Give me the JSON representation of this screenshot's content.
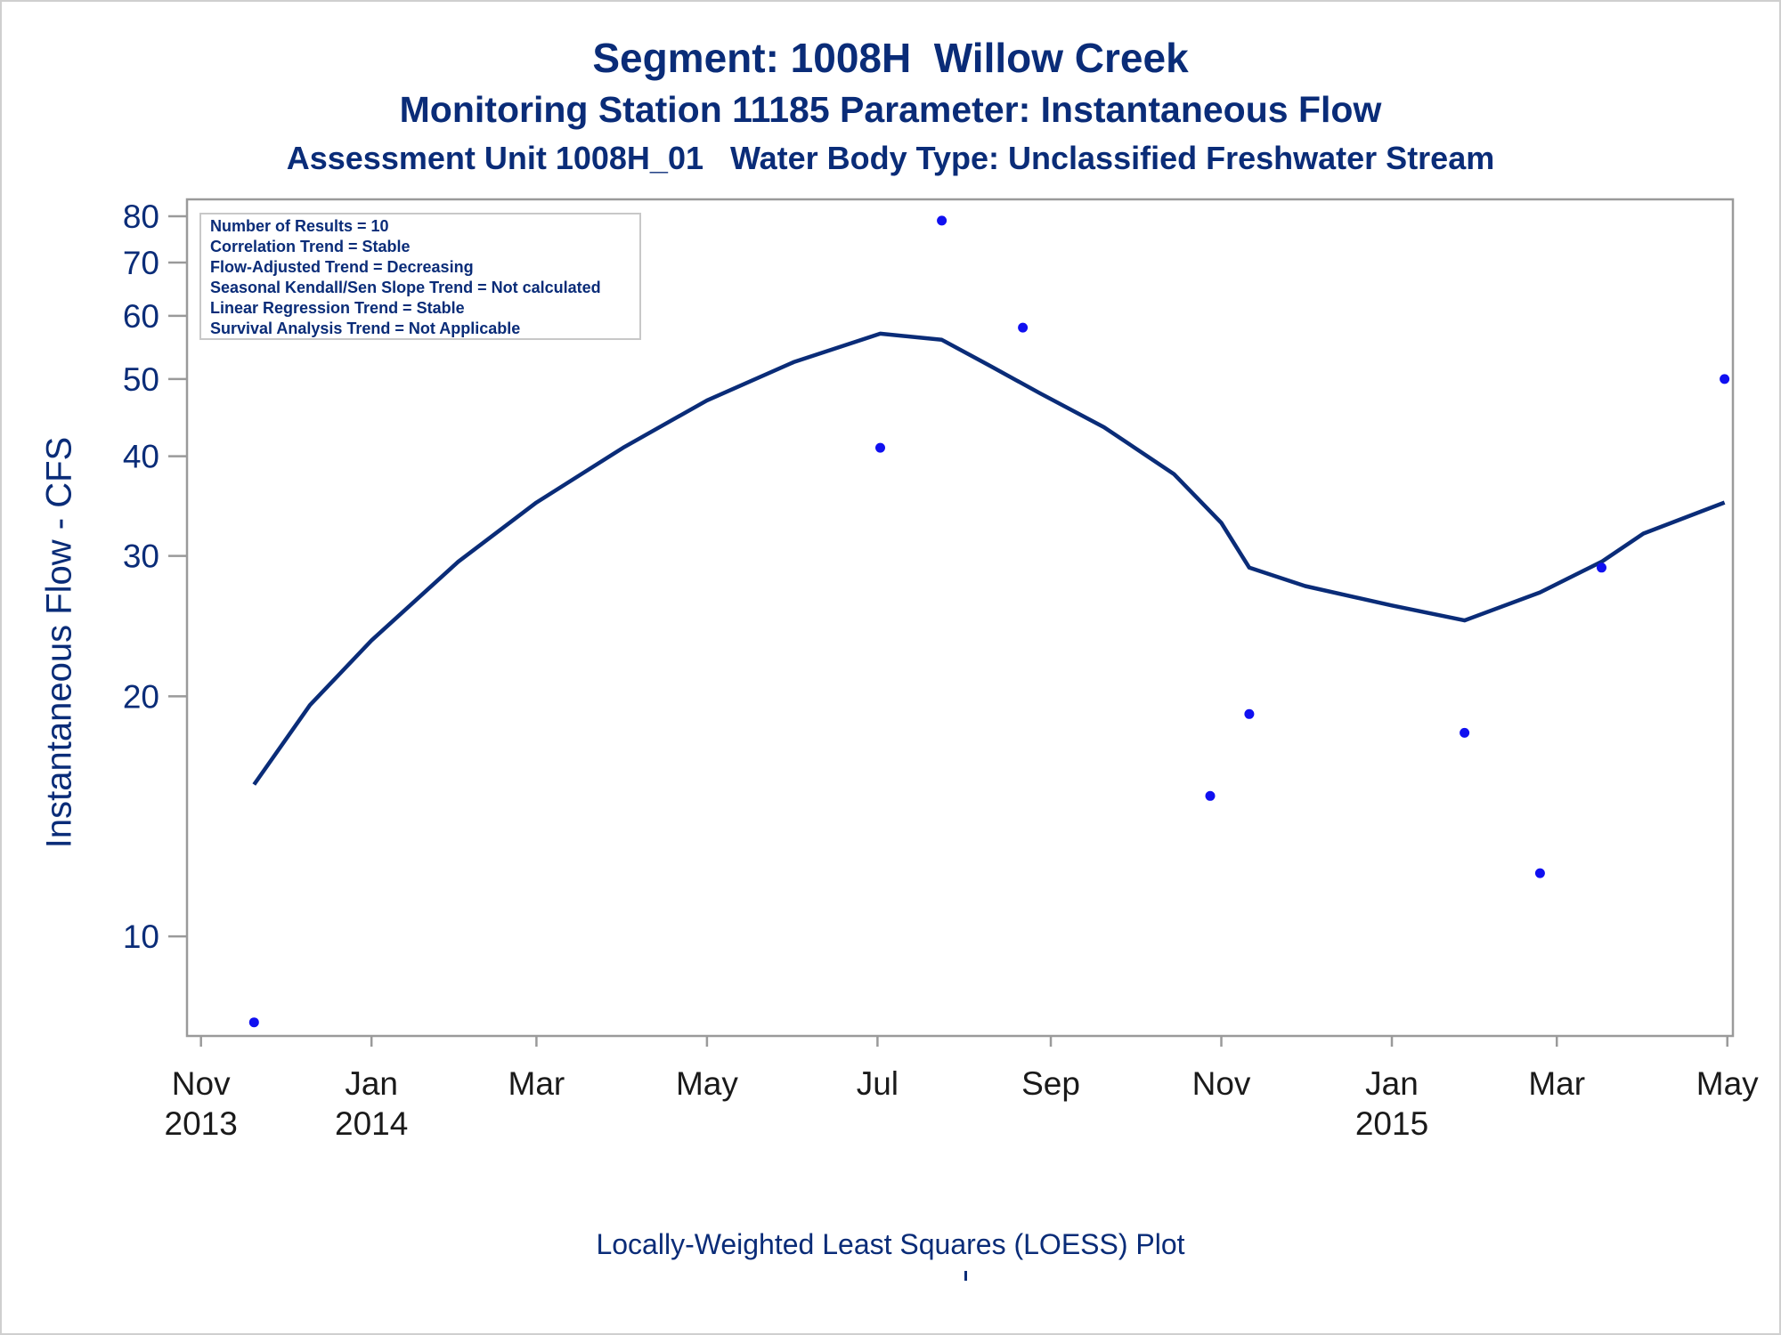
{
  "titles": {
    "segment": "Segment: 1008H  Willow Creek",
    "station": "Monitoring Station 11185 Parameter: Instantaneous Flow",
    "unit": "Assessment Unit 1008H_01   Water Body Type: Unclassified Freshwater Stream"
  },
  "footnote": "Locally-Weighted Least Squares (LOESS) Plot",
  "colors": {
    "text": "#0a2c78",
    "points": "#1010f0",
    "line": "#0a2c78",
    "axis": "#9a9a9a"
  },
  "chart_data": {
    "type": "scatter",
    "title": "Segment: 1008H  Willow Creek",
    "ylabel": "Instantaneous Flow - CFS",
    "xlabel": "",
    "y_scale": "log",
    "ylim": [
      7.5,
      84
    ],
    "xlim": [
      "2013-10-27",
      "2015-05-03"
    ],
    "grid": false,
    "x_ticks": [
      {
        "date": "2013-11-01",
        "label": "Nov",
        "label2": "2013"
      },
      {
        "date": "2014-01-01",
        "label": "Jan",
        "label2": "2014"
      },
      {
        "date": "2014-03-01",
        "label": "Mar",
        "label2": ""
      },
      {
        "date": "2014-05-01",
        "label": "May",
        "label2": ""
      },
      {
        "date": "2014-07-01",
        "label": "Jul",
        "label2": ""
      },
      {
        "date": "2014-09-01",
        "label": "Sep",
        "label2": ""
      },
      {
        "date": "2014-11-01",
        "label": "Nov",
        "label2": ""
      },
      {
        "date": "2015-01-01",
        "label": "Jan",
        "label2": "2015"
      },
      {
        "date": "2015-03-01",
        "label": "Mar",
        "label2": ""
      },
      {
        "date": "2015-05-01",
        "label": "May",
        "label2": ""
      }
    ],
    "y_ticks": [
      10,
      20,
      30,
      40,
      50,
      60,
      70,
      80
    ],
    "stats_box": {
      "location": "top-left",
      "lines": [
        "Number of Results = 10",
        "Correlation Trend = Stable",
        "Flow-Adjusted Trend = Decreasing",
        "Seasonal Kendall/Sen Slope Trend = Not calculated",
        "Linear Regression Trend = Stable",
        "Survival Analysis Trend = Not Applicable"
      ]
    },
    "points": [
      {
        "x": "2013-11-20",
        "y": 7.8
      },
      {
        "x": "2014-07-02",
        "y": 41
      },
      {
        "x": "2014-07-24",
        "y": 79
      },
      {
        "x": "2014-08-22",
        "y": 58
      },
      {
        "x": "2014-10-28",
        "y": 15
      },
      {
        "x": "2014-11-11",
        "y": 19
      },
      {
        "x": "2015-01-27",
        "y": 18
      },
      {
        "x": "2015-02-23",
        "y": 12
      },
      {
        "x": "2015-03-17",
        "y": 29
      },
      {
        "x": "2015-04-30",
        "y": 50
      }
    ],
    "loess": [
      {
        "x": "2013-11-20",
        "y": 15.5
      },
      {
        "x": "2013-12-10",
        "y": 19.5
      },
      {
        "x": "2014-01-01",
        "y": 23.5
      },
      {
        "x": "2014-02-01",
        "y": 29.5
      },
      {
        "x": "2014-03-01",
        "y": 35
      },
      {
        "x": "2014-04-01",
        "y": 41
      },
      {
        "x": "2014-05-01",
        "y": 47
      },
      {
        "x": "2014-06-01",
        "y": 52.5
      },
      {
        "x": "2014-07-02",
        "y": 57
      },
      {
        "x": "2014-07-24",
        "y": 56
      },
      {
        "x": "2014-08-10",
        "y": 52
      },
      {
        "x": "2014-08-28",
        "y": 48
      },
      {
        "x": "2014-09-20",
        "y": 43.5
      },
      {
        "x": "2014-10-15",
        "y": 38
      },
      {
        "x": "2014-11-01",
        "y": 33
      },
      {
        "x": "2014-11-11",
        "y": 29
      },
      {
        "x": "2014-12-01",
        "y": 27.5
      },
      {
        "x": "2015-01-01",
        "y": 26
      },
      {
        "x": "2015-01-27",
        "y": 24.9
      },
      {
        "x": "2015-02-23",
        "y": 27
      },
      {
        "x": "2015-03-17",
        "y": 29.5
      },
      {
        "x": "2015-04-01",
        "y": 32
      },
      {
        "x": "2015-04-30",
        "y": 35
      }
    ]
  }
}
